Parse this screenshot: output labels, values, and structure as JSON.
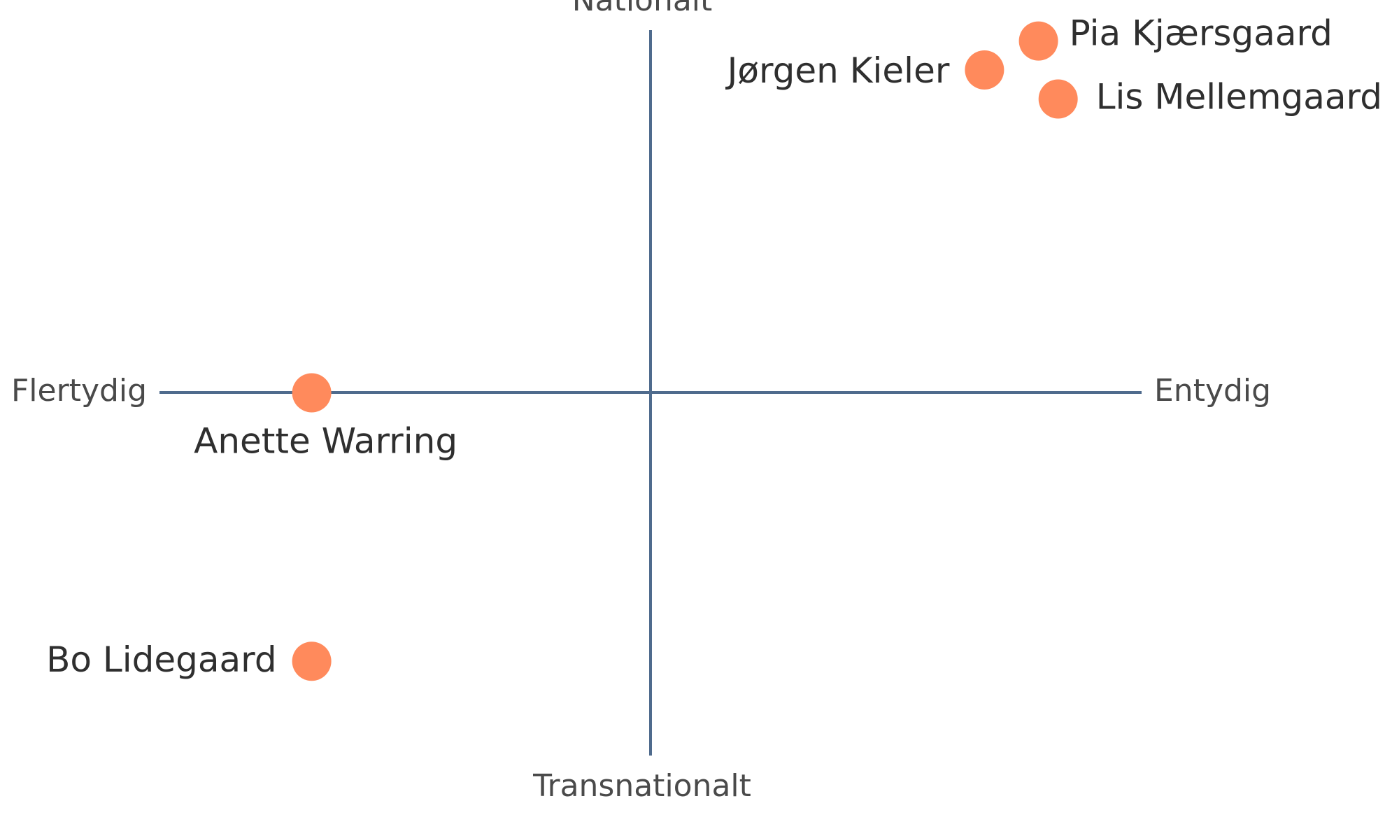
{
  "chart_data": {
    "type": "scatter",
    "axis_labels": {
      "top": "Nationalt",
      "bottom": "Transnationalt",
      "left": "Flertydig",
      "right": "Entydig"
    },
    "xlim": [
      -1,
      1
    ],
    "ylim": [
      -1,
      1
    ],
    "grid": false,
    "legend": "none",
    "colors": {
      "axis": "#4f6b8d",
      "point": "#ff8a5c",
      "label": "#2f2f2f"
    },
    "points": [
      {
        "label": "Pia Kjærsgaard",
        "x": 0.79,
        "y": 0.97
      },
      {
        "label": "Jørgen Kieler",
        "x": 0.68,
        "y": 0.89
      },
      {
        "label": "Lis Mellemgaard",
        "x": 0.83,
        "y": 0.81
      },
      {
        "label": "Anette Warring",
        "x": -0.69,
        "y": 0.0
      },
      {
        "label": "Bo Lidegaard",
        "x": -0.69,
        "y": -0.74
      }
    ]
  }
}
